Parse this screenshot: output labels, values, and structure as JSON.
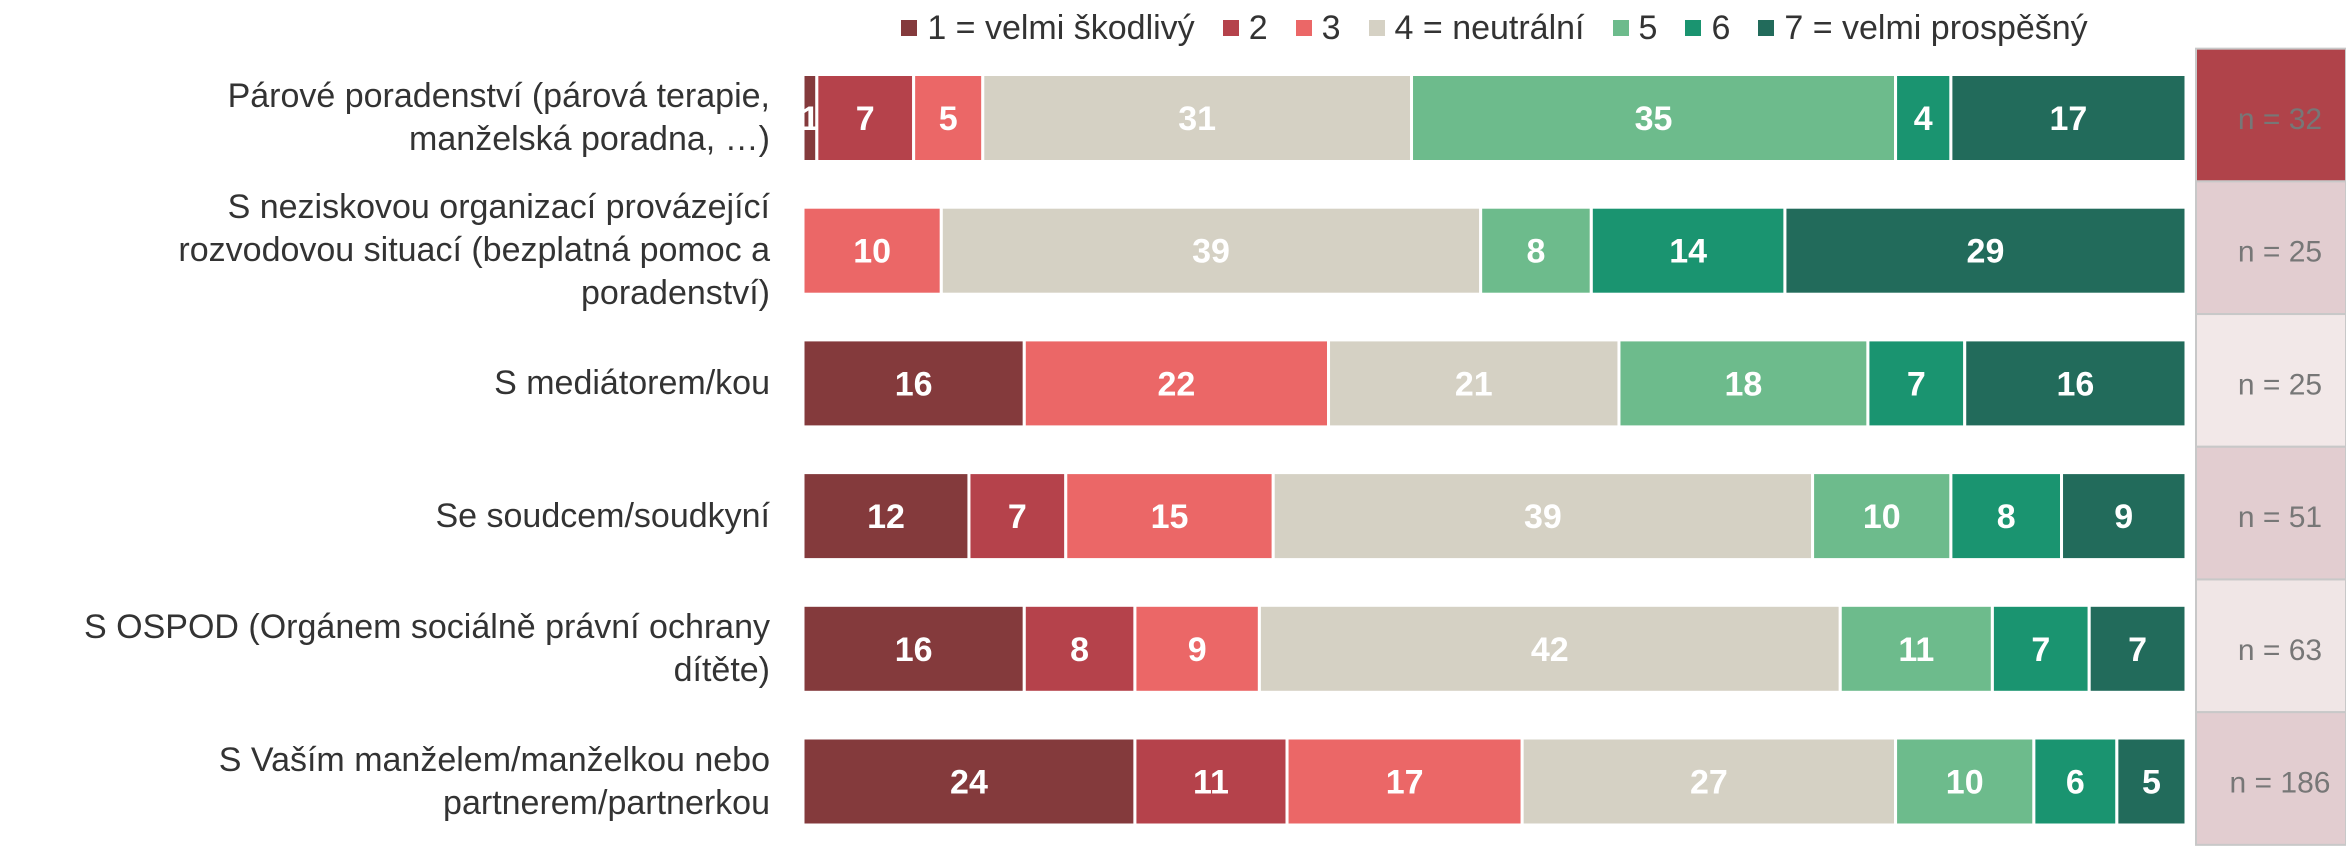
{
  "chart_data": {
    "type": "stacked_bar_horizontal",
    "categories": [
      [
        "Párové poradenství (párová terapie,",
        "manželská poradna, …)"
      ],
      [
        "S neziskovou organizací provázející",
        "rozvodovou situací (bezplatná pomoc a",
        "poradenství)"
      ],
      [
        "S mediátorem/kou"
      ],
      [
        "Se soudcem/soudkyní"
      ],
      [
        "S OSPOD (Orgánem sociálně právní ochrany",
        "dítěte)"
      ],
      [
        "S Vaším manželem/manželkou nebo",
        "partnerem/partnerkou"
      ]
    ],
    "series": [
      {
        "name": "1 = velmi škodlivý",
        "color": "#843a3c",
        "values": [
          1,
          0,
          16,
          12,
          16,
          24
        ]
      },
      {
        "name": "2",
        "color": "#b5424b",
        "values": [
          7,
          0,
          0,
          7,
          8,
          11
        ]
      },
      {
        "name": "3",
        "color": "#eb6767",
        "values": [
          5,
          10,
          22,
          15,
          9,
          17
        ]
      },
      {
        "name": "4 = neutrální",
        "color": "#d5d1c4",
        "values": [
          31,
          39,
          21,
          39,
          42,
          27
        ]
      },
      {
        "name": "5",
        "color": "#6dbb8c",
        "values": [
          35,
          8,
          18,
          10,
          11,
          10
        ]
      },
      {
        "name": "6",
        "color": "#1a9470",
        "values": [
          4,
          14,
          7,
          8,
          7,
          6
        ]
      },
      {
        "name": "7 = velmi prospěšný",
        "color": "#226b5b",
        "values": [
          17,
          29,
          16,
          9,
          7,
          5
        ]
      }
    ],
    "xlim": [
      0,
      100
    ],
    "n_labels": [
      "n = 32",
      "n = 25",
      "n = 25",
      "n = 51",
      "n = 63",
      "n = 186"
    ],
    "n_colors": [
      "#b0434a",
      "#e2cdd0",
      "#f2e8e8",
      "#e2cdd0",
      "#f0e6e6",
      "#e2cdd0"
    ],
    "legend": "top"
  }
}
